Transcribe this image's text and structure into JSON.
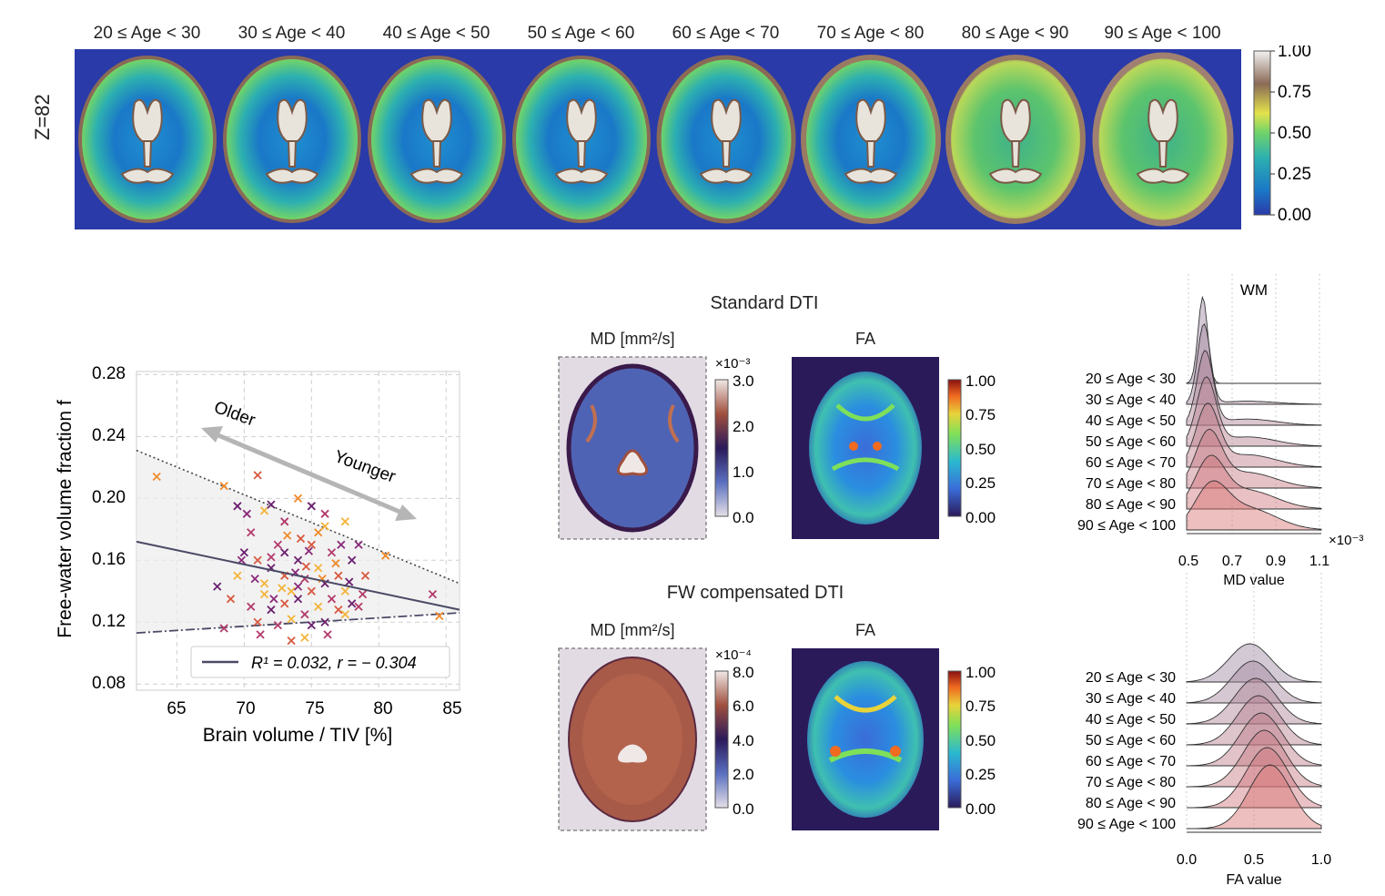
{
  "top_row": {
    "age_labels": [
      "20 ≤ Age < 30",
      "30 ≤ Age < 40",
      "40 ≤ Age < 50",
      "50 ≤ Age < 60",
      "60 ≤ Age < 70",
      "70 ≤ Age < 80",
      "80 ≤ Age < 90",
      "90 ≤ Age < 100"
    ],
    "slice_label": "Z=82",
    "colorbar_ticks": [
      "1.00",
      "0.75",
      "0.50",
      "0.25",
      "0.00"
    ],
    "background_color": "#2a3aa8"
  },
  "scatter": {
    "ylabel": "Free-water volume fraction f",
    "xlabel": "Brain volume / TIV [%]",
    "yticks": [
      "0.28",
      "0.24",
      "0.20",
      "0.16",
      "0.12",
      "0.08"
    ],
    "xticks": [
      "65",
      "70",
      "75",
      "80",
      "85"
    ],
    "older_label": "Older",
    "younger_label": "Younger",
    "legend_text": "R¹ = 0.032, r = − 0.304"
  },
  "dti": {
    "standard_title": "Standard DTI",
    "fw_title": "FW compensated DTI",
    "md_label": "MD [mm²/s]",
    "fa_label": "FA",
    "md_std_exponent": "×10⁻³",
    "md_std_ticks": [
      "3.0",
      "2.0",
      "1.0",
      "0.0"
    ],
    "md_fw_exponent": "×10⁻⁴",
    "md_fw_ticks": [
      "8.0",
      "6.0",
      "4.0",
      "2.0",
      "0.0"
    ],
    "fa_ticks": [
      "1.00",
      "0.75",
      "0.50",
      "0.25",
      "0.00"
    ]
  },
  "ridges": {
    "wm_title": "WM",
    "age_labels": [
      "20 ≤ Age < 30",
      "30 ≤ Age < 40",
      "40 ≤ Age < 50",
      "50 ≤ Age < 60",
      "60 ≤ Age < 70",
      "70 ≤ Age < 80",
      "80 ≤ Age < 90",
      "90 ≤ Age < 100"
    ],
    "md_xticks": [
      "0.5",
      "0.7",
      "0.9",
      "1.1"
    ],
    "md_exponent": "×10⁻³",
    "md_xlabel": "MD value",
    "fa_xticks": [
      "0.0",
      "0.5",
      "1.0"
    ],
    "fa_xlabel": "FA value"
  },
  "chart_data": [
    {
      "type": "scatter",
      "xlabel": "Brain volume / TIV [%]",
      "ylabel": "Free-water volume fraction f",
      "xlim": [
        62,
        86
      ],
      "ylim": [
        0.076,
        0.282
      ],
      "grid": true,
      "legend": "bottom",
      "points": [
        [
          63.5,
          0.214
        ],
        [
          68.5,
          0.208
        ],
        [
          69.5,
          0.195
        ],
        [
          70.2,
          0.19
        ],
        [
          71.0,
          0.215
        ],
        [
          71.5,
          0.192
        ],
        [
          72.0,
          0.196
        ],
        [
          73.0,
          0.185
        ],
        [
          74.0,
          0.2
        ],
        [
          75.0,
          0.195
        ],
        [
          76.0,
          0.19
        ],
        [
          77.5,
          0.185
        ],
        [
          78.5,
          0.17
        ],
        [
          80.5,
          0.163
        ],
        [
          84.0,
          0.138
        ],
        [
          84.5,
          0.124
        ],
        [
          68.0,
          0.143
        ],
        [
          68.5,
          0.116
        ],
        [
          69.0,
          0.135
        ],
        [
          69.5,
          0.15
        ],
        [
          70.0,
          0.165
        ],
        [
          70.5,
          0.178
        ],
        [
          71.0,
          0.16
        ],
        [
          71.5,
          0.145
        ],
        [
          72.0,
          0.155
        ],
        [
          72.5,
          0.17
        ],
        [
          73.0,
          0.15
        ],
        [
          73.5,
          0.14
        ],
        [
          74.0,
          0.16
        ],
        [
          74.5,
          0.148
        ],
        [
          75.0,
          0.17
        ],
        [
          75.5,
          0.155
        ],
        [
          76.0,
          0.145
        ],
        [
          76.5,
          0.165
        ],
        [
          77.0,
          0.15
        ],
        [
          77.5,
          0.14
        ],
        [
          78.0,
          0.16
        ],
        [
          78.5,
          0.13
        ],
        [
          79.0,
          0.15
        ],
        [
          70.5,
          0.13
        ],
        [
          71.0,
          0.12
        ],
        [
          71.5,
          0.138
        ],
        [
          72.0,
          0.128
        ],
        [
          72.5,
          0.118
        ],
        [
          73.0,
          0.132
        ],
        [
          73.5,
          0.122
        ],
        [
          74.0,
          0.135
        ],
        [
          74.5,
          0.125
        ],
        [
          75.0,
          0.14
        ],
        [
          75.5,
          0.13
        ],
        [
          76.0,
          0.12
        ],
        [
          76.5,
          0.135
        ],
        [
          77.0,
          0.128
        ],
        [
          77.5,
          0.125
        ],
        [
          78.0,
          0.132
        ],
        [
          73.5,
          0.108
        ],
        [
          74.5,
          0.11
        ],
        [
          75.0,
          0.118
        ],
        [
          72.5,
          0.1
        ],
        [
          74.0,
          0.143
        ],
        [
          75.5,
          0.178
        ],
        [
          76.0,
          0.182
        ],
        [
          72.0,
          0.162
        ],
        [
          73.2,
          0.176
        ],
        [
          74.8,
          0.166
        ],
        [
          76.8,
          0.158
        ],
        [
          77.8,
          0.146
        ],
        [
          78.8,
          0.138
        ],
        [
          70.8,
          0.148
        ],
        [
          69.8,
          0.16
        ],
        [
          72.8,
          0.142
        ],
        [
          73.8,
          0.152
        ],
        [
          75.8,
          0.148
        ],
        [
          74.2,
          0.174
        ],
        [
          77.2,
          0.17
        ],
        [
          71.2,
          0.112
        ],
        [
          76.2,
          0.112
        ],
        [
          73.0,
          0.165
        ],
        [
          74.6,
          0.156
        ],
        [
          72.2,
          0.135
        ]
      ],
      "series": [
        {
          "values": "fit line from (62, 0.172) to (86, 0.128)"
        },
        {
          "values": "upper bound from (62, 0.231) to (86, 0.145)"
        },
        {
          "values": "lower bound from (62, 0.113) to (86, 0.126)"
        }
      ]
    }
  ]
}
